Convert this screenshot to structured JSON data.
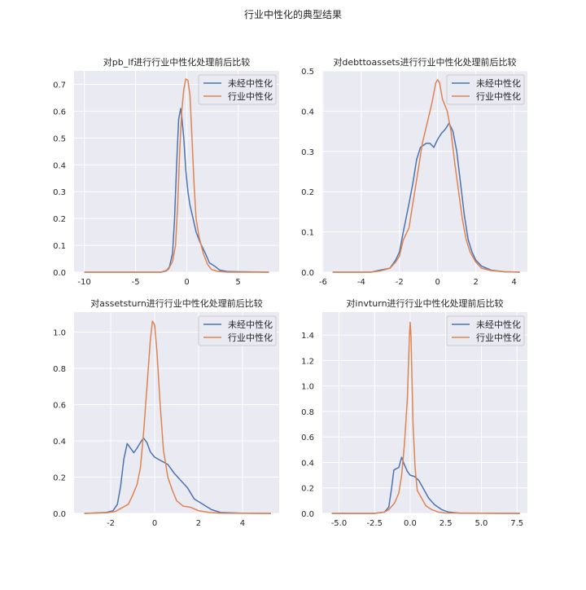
{
  "figure_title": "行业中性化的典型结果",
  "colors": {
    "background": "#eaeaf2",
    "grid": "#ffffff",
    "series_1": "#4c72b0",
    "series_2": "#dd8452"
  },
  "chart_data": [
    {
      "type": "line",
      "title": "对pb_lf进行行业中性化处理前后比较",
      "xlim": [
        -11.0,
        9.0
      ],
      "ylim": [
        0,
        0.75
      ],
      "xticks": [
        -10,
        -5,
        0,
        5
      ],
      "xtick_labels": [
        "-10",
        "-5",
        "0",
        "5"
      ],
      "yticks": [
        0,
        0.1,
        0.2,
        0.3,
        0.4,
        0.5,
        0.6,
        0.7
      ],
      "ytick_labels": [
        "0.0",
        "0.1",
        "0.2",
        "0.3",
        "0.4",
        "0.5",
        "0.6",
        "0.7"
      ],
      "grid": true,
      "legend_placement": "top-right",
      "series": [
        {
          "name": "未经中性化",
          "x": [
            -10,
            -2.5,
            -2,
            -1.7,
            -1.4,
            -1.2,
            -1,
            -0.8,
            -0.6,
            -0.5,
            -0.3,
            -0.1,
            0.1,
            0.3,
            0.6,
            0.9,
            1.3,
            1.8,
            2.2,
            2.8,
            3.2,
            4,
            8
          ],
          "y": [
            0,
            0,
            0.005,
            0.02,
            0.07,
            0.2,
            0.4,
            0.57,
            0.61,
            0.58,
            0.5,
            0.38,
            0.3,
            0.25,
            0.2,
            0.15,
            0.11,
            0.07,
            0.035,
            0.02,
            0.008,
            0.002,
            0
          ]
        },
        {
          "name": "行业中性化",
          "x": [
            -10,
            -2.5,
            -1.8,
            -1.4,
            -1.1,
            -0.9,
            -0.7,
            -0.5,
            -0.3,
            -0.1,
            0.1,
            0.3,
            0.5,
            0.7,
            0.9,
            1.2,
            1.6,
            2,
            2.4,
            3,
            4,
            8
          ],
          "y": [
            0,
            0,
            0.01,
            0.04,
            0.1,
            0.25,
            0.45,
            0.6,
            0.68,
            0.72,
            0.715,
            0.66,
            0.5,
            0.33,
            0.2,
            0.13,
            0.07,
            0.03,
            0.01,
            0.003,
            0,
            0
          ]
        }
      ]
    },
    {
      "type": "line",
      "title": "对debttoassets进行行业中性化处理前后比较",
      "xlim": [
        -6.04,
        4.7
      ],
      "ylim": [
        0,
        0.5
      ],
      "xticks": [
        -6,
        -4,
        -2,
        0,
        2,
        4
      ],
      "xtick_labels": [
        "-6",
        "-4",
        "-2",
        "0",
        "2",
        "4"
      ],
      "yticks": [
        0,
        0.1,
        0.2,
        0.3,
        0.4,
        0.5
      ],
      "ytick_labels": [
        "0.0",
        "0.1",
        "0.2",
        "0.3",
        "0.4",
        "0.5"
      ],
      "grid": true,
      "legend_placement": "top-right",
      "series": [
        {
          "name": "未经中性化",
          "x": [
            -5.5,
            -3.5,
            -3,
            -2.5,
            -2.2,
            -2,
            -1.8,
            -1.5,
            -1.3,
            -1.1,
            -0.9,
            -0.6,
            -0.4,
            -0.2,
            0,
            0.2,
            0.4,
            0.6,
            0.8,
            1,
            1.2,
            1.4,
            1.6,
            1.8,
            2,
            2.3,
            2.8,
            3.5,
            4.3
          ],
          "y": [
            0,
            0,
            0.005,
            0.01,
            0.03,
            0.05,
            0.1,
            0.17,
            0.22,
            0.28,
            0.31,
            0.32,
            0.32,
            0.31,
            0.33,
            0.345,
            0.355,
            0.37,
            0.35,
            0.3,
            0.22,
            0.14,
            0.08,
            0.05,
            0.03,
            0.015,
            0.005,
            0.001,
            0
          ]
        },
        {
          "name": "行业中性化",
          "x": [
            -5.5,
            -3.5,
            -3,
            -2.5,
            -2.2,
            -2,
            -1.8,
            -1.5,
            -1.3,
            -1,
            -0.8,
            -0.5,
            -0.3,
            -0.1,
            0,
            0.1,
            0.25,
            0.5,
            0.7,
            0.9,
            1.1,
            1.3,
            1.5,
            1.7,
            2,
            2.3,
            2.8,
            3.5,
            4.3
          ],
          "y": [
            0,
            0,
            0.003,
            0.01,
            0.025,
            0.04,
            0.08,
            0.11,
            0.17,
            0.26,
            0.32,
            0.38,
            0.42,
            0.47,
            0.478,
            0.47,
            0.43,
            0.4,
            0.35,
            0.27,
            0.2,
            0.13,
            0.08,
            0.05,
            0.025,
            0.01,
            0.004,
            0.001,
            0
          ]
        }
      ]
    },
    {
      "type": "line",
      "title": "对assetsturn进行行业中性化处理前后比较",
      "xlim": [
        -3.67,
        5.67
      ],
      "ylim": [
        0,
        1.11
      ],
      "xticks": [
        -2,
        0,
        2,
        4
      ],
      "xtick_labels": [
        "-2",
        "0",
        "2",
        "4"
      ],
      "yticks": [
        0,
        0.2,
        0.4,
        0.6,
        0.8,
        1.0
      ],
      "ytick_labels": [
        "0.0",
        "0.2",
        "0.4",
        "0.6",
        "0.8",
        "1.0"
      ],
      "grid": true,
      "legend_placement": "top-right",
      "series": [
        {
          "name": "未经中性化",
          "x": [
            -3.2,
            -2.2,
            -1.9,
            -1.7,
            -1.55,
            -1.4,
            -1.25,
            -1.1,
            -0.95,
            -0.8,
            -0.6,
            -0.5,
            -0.35,
            -0.2,
            0,
            0.3,
            0.6,
            0.9,
            1.2,
            1.5,
            1.8,
            2.2,
            2.6,
            3,
            4,
            5.3
          ],
          "y": [
            0,
            0.005,
            0.015,
            0.05,
            0.15,
            0.3,
            0.385,
            0.36,
            0.335,
            0.36,
            0.4,
            0.415,
            0.39,
            0.34,
            0.31,
            0.29,
            0.27,
            0.22,
            0.18,
            0.14,
            0.08,
            0.05,
            0.02,
            0.005,
            0.001,
            0
          ]
        },
        {
          "name": "行业中性化",
          "x": [
            -3.2,
            -2.2,
            -1.8,
            -1.5,
            -1.2,
            -1,
            -0.8,
            -0.65,
            -0.5,
            -0.35,
            -0.2,
            -0.1,
            0,
            0.1,
            0.25,
            0.4,
            0.6,
            0.8,
            1,
            1.3,
            1.6,
            2,
            2.5,
            3,
            5.3
          ],
          "y": [
            0,
            0.003,
            0.01,
            0.03,
            0.05,
            0.1,
            0.16,
            0.25,
            0.45,
            0.7,
            0.95,
            1.06,
            1.04,
            0.9,
            0.6,
            0.35,
            0.2,
            0.13,
            0.07,
            0.04,
            0.035,
            0.015,
            0.005,
            0.001,
            0
          ]
        }
      ]
    },
    {
      "type": "line",
      "title": "对invturn进行行业中性化处理前后比较",
      "xlim": [
        -6.17,
        8.23
      ],
      "ylim": [
        0,
        1.58
      ],
      "xticks": [
        -5,
        -2.5,
        0,
        2.5,
        5,
        7.5
      ],
      "xtick_labels": [
        "-5.0",
        "-2.5",
        "0.0",
        "2.5",
        "5.0",
        "7.5"
      ],
      "yticks": [
        0,
        0.2,
        0.4,
        0.6,
        0.8,
        1.0,
        1.2,
        1.4
      ],
      "ytick_labels": [
        "0.0",
        "0.2",
        "0.4",
        "0.6",
        "0.8",
        "1.0",
        "1.2",
        "1.4"
      ],
      "grid": true,
      "legend_placement": "top-right",
      "series": [
        {
          "name": "未经中性化",
          "x": [
            -5.5,
            -2.5,
            -1.8,
            -1.5,
            -1.3,
            -1.15,
            -1,
            -0.8,
            -0.6,
            -0.4,
            -0.2,
            0,
            0.3,
            0.6,
            0.9,
            1.3,
            1.7,
            2.2,
            2.7,
            3.5,
            7.7
          ],
          "y": [
            0,
            0,
            0.01,
            0.05,
            0.2,
            0.34,
            0.35,
            0.36,
            0.44,
            0.38,
            0.33,
            0.3,
            0.29,
            0.26,
            0.2,
            0.12,
            0.07,
            0.03,
            0.01,
            0.002,
            0
          ]
        },
        {
          "name": "行业中性化",
          "x": [
            -5.5,
            -2.5,
            -1.8,
            -1.5,
            -1.1,
            -0.8,
            -0.6,
            -0.4,
            -0.2,
            -0.05,
            0,
            0.05,
            0.2,
            0.35,
            0.5,
            0.8,
            1.1,
            1.5,
            2,
            2.5,
            7.7
          ],
          "y": [
            0,
            0,
            0.01,
            0.03,
            0.08,
            0.16,
            0.3,
            0.55,
            0.9,
            1.4,
            1.5,
            1.4,
            0.7,
            0.35,
            0.18,
            0.12,
            0.06,
            0.03,
            0.01,
            0.003,
            0
          ]
        }
      ]
    }
  ]
}
